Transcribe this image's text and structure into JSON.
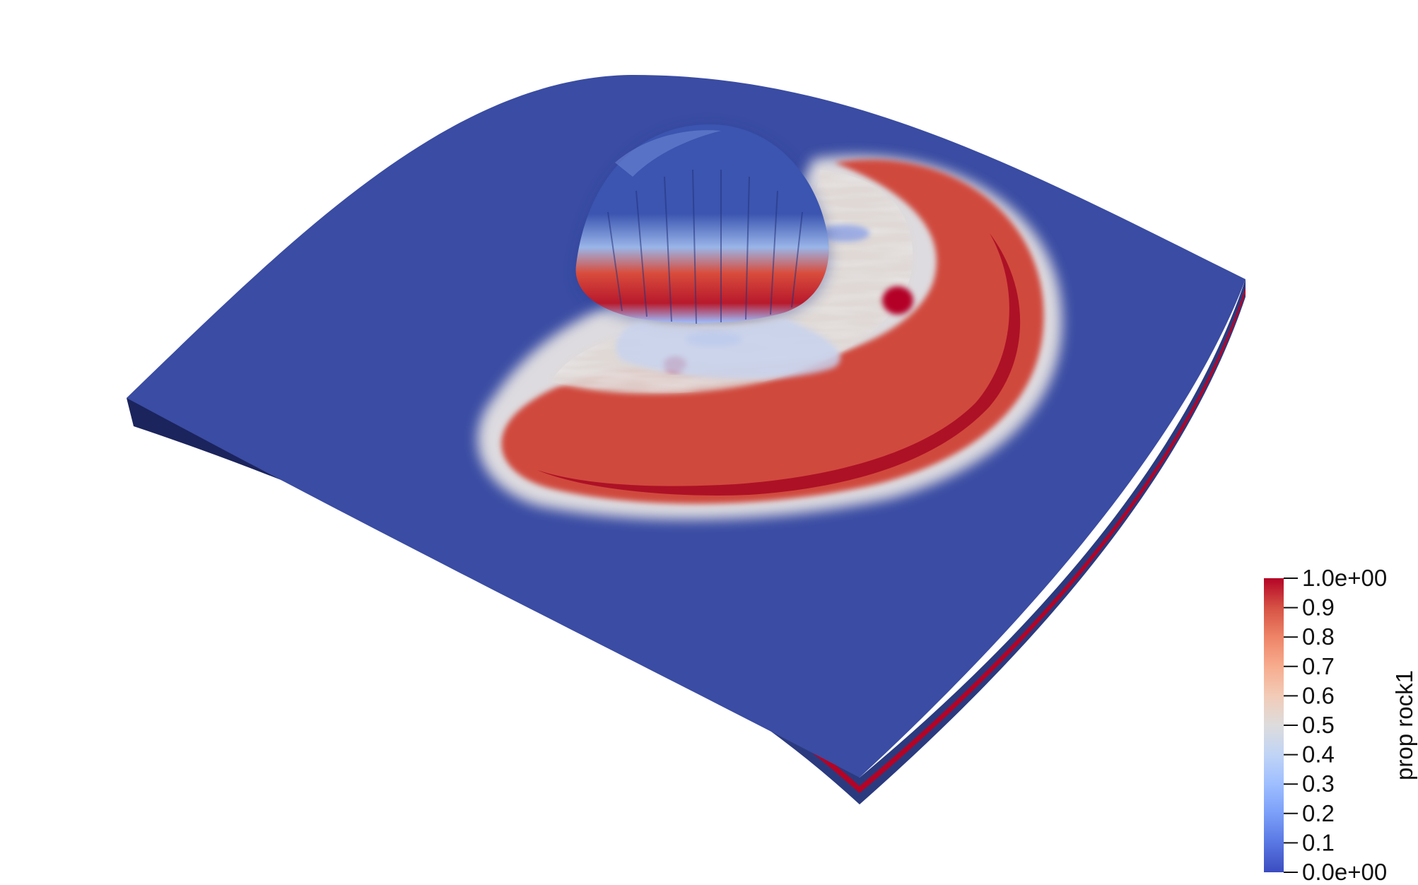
{
  "render": {
    "background": "#ffffff",
    "field_name": "prop rock1",
    "surface_base_color": "#3a4ca3",
    "side_dark_color": "#1b245c",
    "layer_stripe_color": "#b40426",
    "colormap_name": "cool-to-warm",
    "colormap_stops": [
      {
        "value": 0.0,
        "color": "#3b4cc0"
      },
      {
        "value": 0.1,
        "color": "#5977e3"
      },
      {
        "value": 0.2,
        "color": "#7b9ff9"
      },
      {
        "value": 0.3,
        "color": "#9ebeff"
      },
      {
        "value": 0.4,
        "color": "#c0d4f5"
      },
      {
        "value": 0.5,
        "color": "#dddcdc"
      },
      {
        "value": 0.6,
        "color": "#f2cbb7"
      },
      {
        "value": 0.7,
        "color": "#f7ac8e"
      },
      {
        "value": 0.8,
        "color": "#ee8468"
      },
      {
        "value": 0.9,
        "color": "#d65244"
      },
      {
        "value": 1.0,
        "color": "#b40426"
      }
    ]
  },
  "scalar_bar": {
    "title": "prop rock1",
    "labels": [
      "1.0e+00",
      "0.9",
      "0.8",
      "0.7",
      "0.6",
      "0.5",
      "0.4",
      "0.3",
      "0.2",
      "0.1",
      "0.0e+00"
    ],
    "range": [
      0.0,
      1.0
    ]
  }
}
